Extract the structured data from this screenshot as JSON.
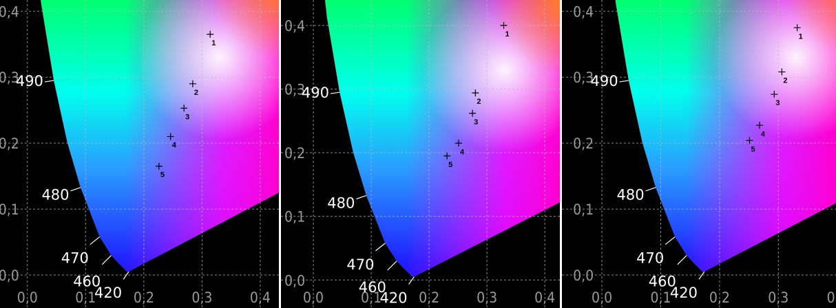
{
  "chart_data": [
    {
      "type": "scatter",
      "xlim": [
        -0.047,
        0.432
      ],
      "ylim": [
        -0.05,
        0.417
      ],
      "xticks": [
        {
          "value": 0,
          "label": "0,0"
        },
        {
          "value": 0.1,
          "label": "0,1"
        },
        {
          "value": 0.2,
          "label": "0,2"
        },
        {
          "value": 0.3,
          "label": "0,3"
        },
        {
          "value": 0.4,
          "label": "0,4"
        }
      ],
      "yticks": [
        {
          "value": 0,
          "label": "0,0"
        },
        {
          "value": 0.1,
          "label": "0,1"
        },
        {
          "value": 0.2,
          "label": "0,2"
        },
        {
          "value": 0.3,
          "label": "0,3"
        },
        {
          "value": 0.4,
          "label": "0,4"
        }
      ],
      "grid": true,
      "annotations": [
        "490",
        "480",
        "470",
        "460",
        "420"
      ],
      "series": [
        {
          "color": "#000000",
          "labels": [
            "1",
            "2",
            "3",
            "4",
            "5"
          ],
          "x": [
            0.314,
            0.284,
            0.269,
            0.246,
            0.226
          ],
          "values": [
            0.365,
            0.29,
            0.253,
            0.21,
            0.165
          ]
        }
      ]
    },
    {
      "type": "scatter",
      "xlim": [
        -0.056,
        0.426
      ],
      "ylim": [
        -0.044,
        0.44
      ],
      "xticks": [
        {
          "value": 0,
          "label": "0,0"
        },
        {
          "value": 0.1,
          "label": "0,1"
        },
        {
          "value": 0.2,
          "label": "0,2"
        },
        {
          "value": 0.3,
          "label": "0,3"
        },
        {
          "value": 0.4,
          "label": "0,4"
        }
      ],
      "yticks": [
        {
          "value": 0,
          "label": "0,0"
        },
        {
          "value": 0.1,
          "label": "0,1"
        },
        {
          "value": 0.2,
          "label": "0,2"
        },
        {
          "value": 0.3,
          "label": "0,3"
        },
        {
          "value": 0.4,
          "label": "0,4"
        }
      ],
      "grid": true,
      "annotations": [
        "490",
        "480",
        "470",
        "460",
        "420"
      ],
      "series": [
        {
          "color": "#000000",
          "labels": [
            "1",
            "2",
            "3",
            "4",
            "5"
          ],
          "x": [
            0.329,
            0.28,
            0.275,
            0.251,
            0.231
          ],
          "values": [
            0.4,
            0.294,
            0.262,
            0.215,
            0.195
          ]
        }
      ]
    },
    {
      "type": "scatter",
      "xlim": [
        -0.068,
        0.398
      ],
      "ylim": [
        -0.05,
        0.417
      ],
      "xticks": [
        {
          "value": 0,
          "label": "0,0"
        },
        {
          "value": 0.1,
          "label": "0,1"
        },
        {
          "value": 0.2,
          "label": "0,2"
        },
        {
          "value": 0.3,
          "label": "0,3"
        },
        {
          "value": 0.4,
          "label": "0,4"
        }
      ],
      "yticks": [
        {
          "value": 0,
          "label": "0,0"
        },
        {
          "value": 0.1,
          "label": "0,1"
        },
        {
          "value": 0.2,
          "label": "0,2"
        },
        {
          "value": 0.3,
          "label": "0,3"
        },
        {
          "value": 0.4,
          "label": "0,4"
        }
      ],
      "grid": true,
      "annotations": [
        "490",
        "480",
        "470",
        "460",
        "420"
      ],
      "series": [
        {
          "color": "#000000",
          "labels": [
            "1",
            "2",
            "3",
            "4",
            "5"
          ],
          "x": [
            0.332,
            0.306,
            0.293,
            0.268,
            0.251
          ],
          "values": [
            0.375,
            0.308,
            0.274,
            0.227,
            0.204
          ]
        }
      ]
    }
  ]
}
